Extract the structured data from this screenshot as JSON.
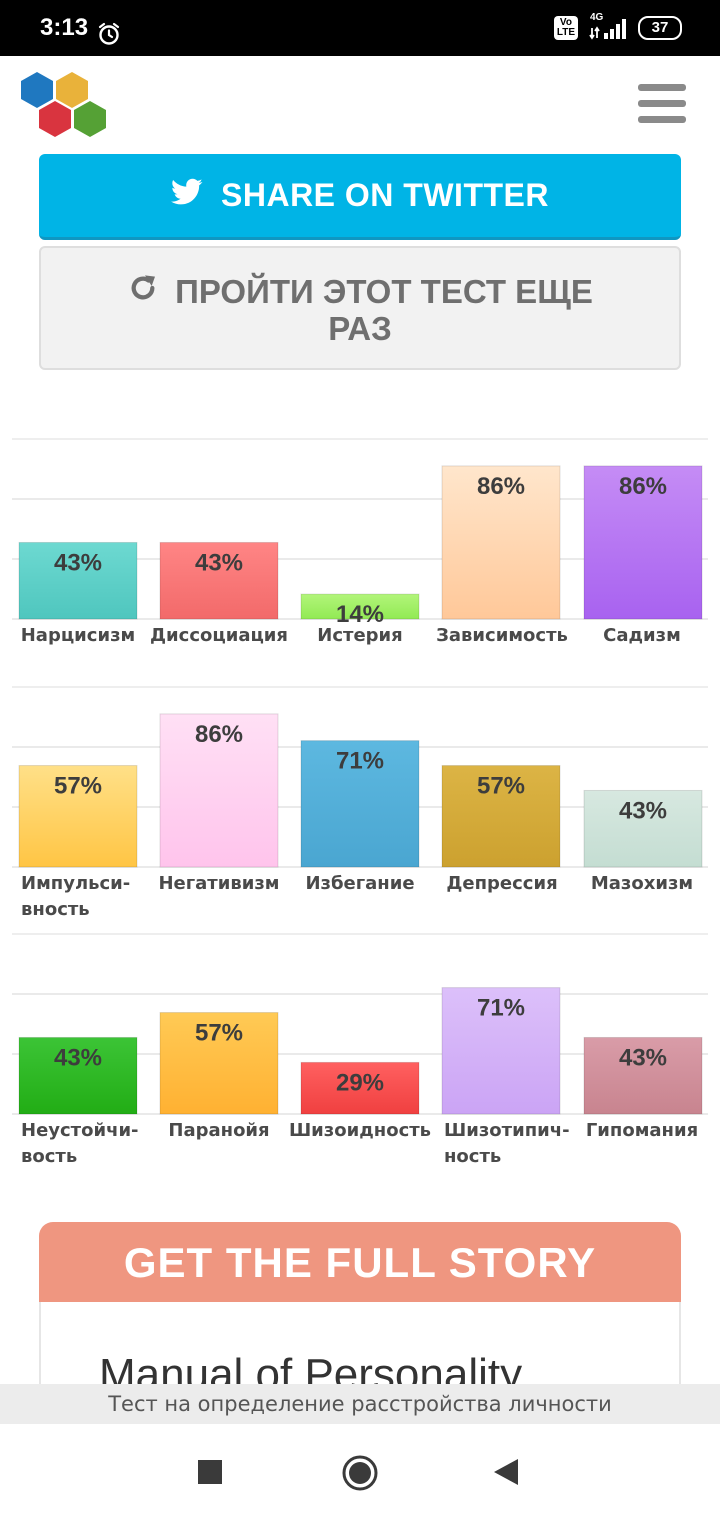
{
  "status_bar": {
    "time": "3:13",
    "volte_label": "Vo\nLTE",
    "network_label": "4G",
    "battery": "37",
    "icons": [
      "alarm-icon",
      "volte-icon",
      "signal-icon",
      "battery-icon"
    ]
  },
  "header": {
    "logo_icon": "hexagon-cluster-logo",
    "menu_icon": "hamburger-menu-icon",
    "logo_colors": [
      "#1f78c0",
      "#e9b23a",
      "#d9343f",
      "#55a135"
    ]
  },
  "buttons": {
    "twitter_label": "SHARE ON TWITTER",
    "twitter_icon": "twitter-bird-icon",
    "twitter_color": "#00b4e6",
    "retake_label_line1": "ПРОЙТИ ЭТОТ ТЕСТ ЕЩЕ",
    "retake_label_line2": "РАЗ",
    "retake_icon": "refresh-icon"
  },
  "chart_data": [
    {
      "type": "bar",
      "categories": [
        [
          "Нарцисизм"
        ],
        [
          "Диссоциация"
        ],
        [
          "Истерия"
        ],
        [
          "Зависимость"
        ],
        [
          "Садизм"
        ]
      ],
      "values": [
        43,
        43,
        14,
        86,
        86
      ],
      "labels": [
        "43%",
        "43%",
        "14%",
        "86%",
        "86%"
      ],
      "colors": [
        [
          "#6dd9d1",
          "#4fc6be"
        ],
        [
          "#ff8585",
          "#f26a6a"
        ],
        [
          "#b2f57a",
          "#92ea54"
        ],
        [
          "#ffe6cc",
          "#ffc899"
        ],
        [
          "#c58cf5",
          "#a862f0"
        ]
      ],
      "ylim": [
        0,
        100
      ],
      "grid": true
    },
    {
      "type": "bar",
      "categories": [
        [
          "Импульси-",
          "вность"
        ],
        [
          "Негативизм"
        ],
        [
          "Избегание"
        ],
        [
          "Депрессия"
        ],
        [
          "Мазохизм"
        ]
      ],
      "values": [
        57,
        86,
        71,
        57,
        43
      ],
      "labels": [
        "57%",
        "86%",
        "71%",
        "57%",
        "43%"
      ],
      "colors": [
        [
          "#ffe088",
          "#ffc544"
        ],
        [
          "#ffe0f5",
          "#ffc4ec"
        ],
        [
          "#5db8e0",
          "#4aa6d1"
        ],
        [
          "#dcb445",
          "#cca12f"
        ],
        [
          "#d7e8e0",
          "#c4ddd2"
        ]
      ],
      "ylim": [
        0,
        100
      ],
      "grid": true
    },
    {
      "type": "bar",
      "categories": [
        [
          "Неустойчи-",
          "вость"
        ],
        [
          "Паранойя"
        ],
        [
          "Шизоидность"
        ],
        [
          "Шизотипич-",
          "ность"
        ],
        [
          "Гипомания"
        ]
      ],
      "values": [
        43,
        57,
        29,
        71,
        43
      ],
      "labels": [
        "43%",
        "57%",
        "29%",
        "71%",
        "43%"
      ],
      "colors": [
        [
          "#3cc436",
          "#22ad15"
        ],
        [
          "#ffca55",
          "#ffb132"
        ],
        [
          "#ff6060",
          "#f04040"
        ],
        [
          "#dcc0fa",
          "#cba4f5"
        ],
        [
          "#d99ca8",
          "#c8848f"
        ]
      ],
      "ylim": [
        0,
        100
      ],
      "grid": true
    }
  ],
  "story": {
    "heading": "GET THE FULL STORY",
    "title": "Manual of Personality",
    "heading_color": "#ef9680"
  },
  "bottom_bar": {
    "text": "Тест на определение расстройства личности"
  },
  "navbar": {
    "icons": [
      "square-recents-icon",
      "circle-home-icon",
      "triangle-back-icon"
    ]
  }
}
